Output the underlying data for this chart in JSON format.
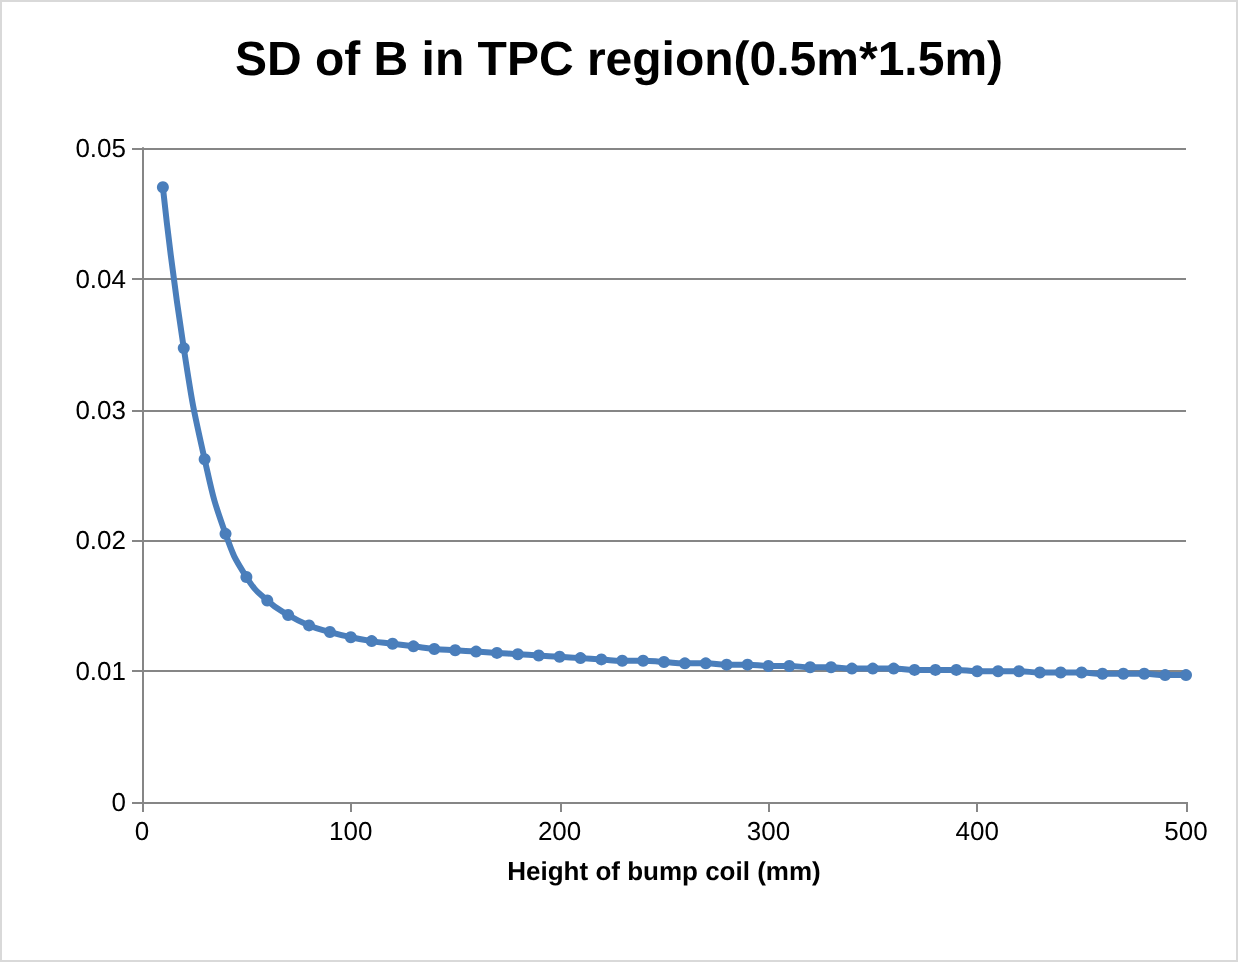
{
  "chart_data": {
    "type": "line",
    "title": "SD of B in TPC region(0.5m*1.5m)",
    "xlabel": "Height of bump coil (mm)",
    "x": [
      10,
      20,
      30,
      40,
      50,
      60,
      70,
      80,
      90,
      100,
      110,
      120,
      130,
      140,
      150,
      160,
      170,
      180,
      190,
      200,
      210,
      220,
      230,
      240,
      250,
      260,
      270,
      280,
      290,
      300,
      310,
      320,
      330,
      340,
      350,
      360,
      370,
      380,
      390,
      400,
      410,
      420,
      430,
      440,
      450,
      460,
      470,
      480,
      490,
      500
    ],
    "series": [
      {
        "color": "#4a7ebb",
        "values": [
          0.047,
          0.0347,
          0.0262,
          0.0205,
          0.0172,
          0.0154,
          0.0143,
          0.0135,
          0.013,
          0.0126,
          0.0123,
          0.0121,
          0.0119,
          0.0117,
          0.0116,
          0.0115,
          0.0114,
          0.0113,
          0.0112,
          0.0111,
          0.011,
          0.0109,
          0.0108,
          0.0108,
          0.0107,
          0.0106,
          0.0106,
          0.0105,
          0.0105,
          0.0104,
          0.0104,
          0.0103,
          0.0103,
          0.0102,
          0.0102,
          0.0102,
          0.0101,
          0.0101,
          0.0101,
          0.01,
          0.01,
          0.01,
          0.0099,
          0.0099,
          0.0099,
          0.0098,
          0.0098,
          0.0098,
          0.0097,
          0.0097
        ]
      }
    ],
    "xlim": [
      0,
      500
    ],
    "xticks": [
      0,
      100,
      200,
      300,
      400,
      500
    ],
    "ylim": [
      0,
      0.05
    ],
    "yticks": [
      0,
      0.01,
      0.02,
      0.03,
      0.04,
      0.05
    ],
    "grid": "y",
    "marker": "circle",
    "line_style": "solid"
  }
}
